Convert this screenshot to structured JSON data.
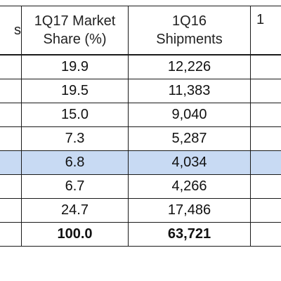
{
  "table": {
    "columns": [
      {
        "label_line1": "",
        "label_line2": "s"
      },
      {
        "label_line1": "1Q17 Market",
        "label_line2": "Share (%)"
      },
      {
        "label_line1": "1Q16",
        "label_line2": "Shipments"
      },
      {
        "label_line1": "1",
        "label_line2": ""
      }
    ],
    "rows": [
      {
        "share": "19.9",
        "shipments": "12,226",
        "highlight": false,
        "total": false
      },
      {
        "share": "19.5",
        "shipments": "11,383",
        "highlight": false,
        "total": false
      },
      {
        "share": "15.0",
        "shipments": "9,040",
        "highlight": false,
        "total": false
      },
      {
        "share": "7.3",
        "shipments": "5,287",
        "highlight": false,
        "total": false
      },
      {
        "share": "6.8",
        "shipments": "4,034",
        "highlight": true,
        "total": false
      },
      {
        "share": "6.7",
        "shipments": "4,266",
        "highlight": false,
        "total": false
      },
      {
        "share": "24.7",
        "shipments": "17,486",
        "highlight": false,
        "total": false
      },
      {
        "share": "100.0",
        "shipments": "63,721",
        "highlight": false,
        "total": true
      }
    ],
    "colors": {
      "highlight_row": "#c8daf3",
      "border": "#1a1a1a",
      "text": "#111111"
    }
  }
}
